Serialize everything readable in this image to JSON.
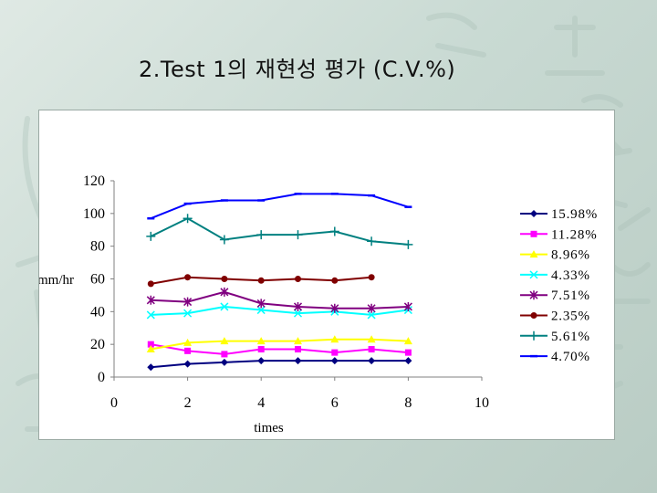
{
  "slide": {
    "title": "2.Test 1의 재현성 평가 (C.V.%)"
  },
  "chart_data": {
    "type": "line",
    "title": "",
    "xlabel": "times",
    "ylabel": "mm/hr",
    "xlim": [
      0,
      10
    ],
    "ylim": [
      0,
      120
    ],
    "x_ticks": [
      0,
      2,
      4,
      6,
      8,
      10
    ],
    "y_ticks": [
      0,
      20,
      40,
      60,
      80,
      100,
      120
    ],
    "grid": false,
    "legend_position": "right",
    "series": [
      {
        "name": "15.98%",
        "color": "#000080",
        "marker": "diamond",
        "x": [
          1,
          2,
          3,
          4,
          5,
          6,
          7,
          8
        ],
        "values": [
          6,
          8,
          9,
          10,
          10,
          10,
          10,
          10
        ]
      },
      {
        "name": "11.28%",
        "color": "#ff00ff",
        "marker": "square",
        "x": [
          1,
          2,
          3,
          4,
          5,
          6,
          7,
          8
        ],
        "values": [
          20,
          16,
          14,
          17,
          17,
          15,
          17,
          15
        ]
      },
      {
        "name": "8.96%",
        "color": "#ffff00",
        "marker": "triangle",
        "x": [
          1,
          2,
          3,
          4,
          5,
          6,
          7,
          8
        ],
        "values": [
          17,
          21,
          22,
          22,
          22,
          23,
          23,
          22
        ]
      },
      {
        "name": "4.33%",
        "color": "#00ffff",
        "marker": "x",
        "x": [
          1,
          2,
          3,
          4,
          5,
          6,
          7,
          8
        ],
        "values": [
          38,
          39,
          43,
          41,
          39,
          40,
          38,
          41
        ]
      },
      {
        "name": "7.51%",
        "color": "#800080",
        "marker": "star",
        "x": [
          1,
          2,
          3,
          4,
          5,
          6,
          7,
          8
        ],
        "values": [
          47,
          46,
          52,
          45,
          43,
          42,
          42,
          43
        ]
      },
      {
        "name": "2.35%",
        "color": "#800000",
        "marker": "circle",
        "x": [
          1,
          2,
          3,
          4,
          5,
          6,
          7
        ],
        "values": [
          57,
          61,
          60,
          59,
          60,
          59,
          61
        ]
      },
      {
        "name": "5.61%",
        "color": "#008080",
        "marker": "plus",
        "x": [
          1,
          2,
          3,
          4,
          5,
          6,
          7,
          8
        ],
        "values": [
          86,
          97,
          84,
          87,
          87,
          89,
          83,
          81
        ]
      },
      {
        "name": "4.70%",
        "color": "#0000ff",
        "marker": "dash",
        "x": [
          1,
          2,
          3,
          4,
          5,
          6,
          7,
          8
        ],
        "values": [
          97,
          106,
          108,
          108,
          112,
          112,
          111,
          104
        ]
      }
    ]
  }
}
